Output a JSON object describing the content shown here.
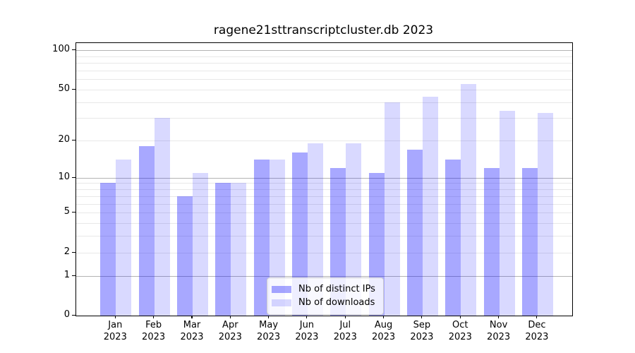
{
  "chart_data": {
    "type": "bar",
    "title": "ragene21sttranscriptcluster.db 2023",
    "year": "2023",
    "categories": [
      "Jan",
      "Feb",
      "Mar",
      "Apr",
      "May",
      "Jun",
      "Jul",
      "Aug",
      "Sep",
      "Oct",
      "Nov",
      "Dec"
    ],
    "series": [
      {
        "name": "Nb of distinct IPs",
        "color": "#a8a8fa",
        "fill_rgba": "rgba(0,0,255,0.34)",
        "values": [
          9,
          18,
          7,
          9,
          14,
          16,
          12,
          11,
          17,
          14,
          12,
          12
        ]
      },
      {
        "name": "Nb of downloads",
        "color": "#d9d9fb",
        "fill_rgba": "rgba(0,0,255,0.15)",
        "values": [
          14,
          30,
          11,
          9,
          14,
          19,
          19,
          40,
          44,
          55,
          34,
          33
        ]
      }
    ],
    "yscale": "log1p",
    "ylim": [
      0,
      100
    ],
    "ytick_labels": [
      100,
      50,
      20,
      10,
      5,
      2,
      1,
      0
    ],
    "grid_major_values": [
      1,
      10,
      100
    ],
    "grid_minor_values": [
      2,
      3,
      4,
      5,
      6,
      7,
      8,
      9,
      20,
      30,
      40,
      50,
      60,
      70,
      80,
      90
    ],
    "grid": "on",
    "legend_position": "lower center",
    "colors": {
      "grid_major": "#b4b4b4",
      "grid_minor": "#e8e8e8",
      "axis": "#000000",
      "background": "#ffffff"
    }
  },
  "legend": {
    "items": [
      {
        "label": "Nb of distinct IPs"
      },
      {
        "label": "Nb of downloads"
      }
    ]
  }
}
